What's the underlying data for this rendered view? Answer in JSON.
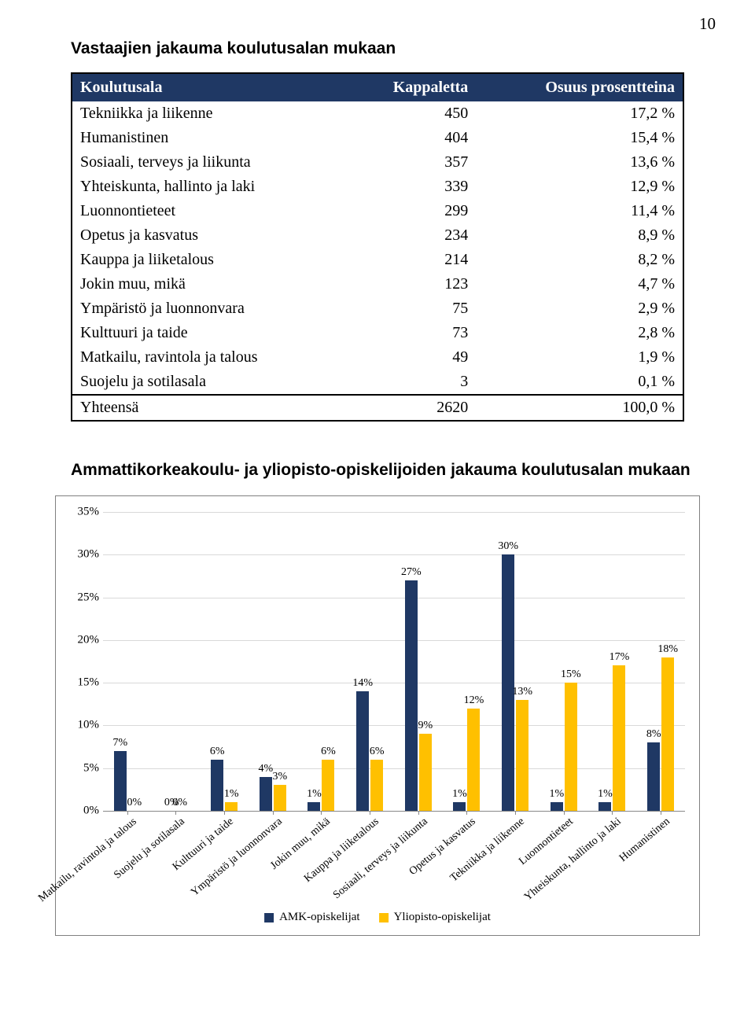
{
  "page_number": "10",
  "title1": "Vastaajien jakauma koulutusalan mukaan",
  "table": {
    "columns": [
      "Koulutusala",
      "Kappaletta",
      "Osuus prosentteina"
    ],
    "rows": [
      [
        "Tekniikka ja liikenne",
        "450",
        "17,2 %"
      ],
      [
        "Humanistinen",
        "404",
        "15,4 %"
      ],
      [
        "Sosiaali, terveys ja liikunta",
        "357",
        "13,6 %"
      ],
      [
        "Yhteiskunta, hallinto ja laki",
        "339",
        "12,9 %"
      ],
      [
        "Luonnontieteet",
        "299",
        "11,4 %"
      ],
      [
        "Opetus ja kasvatus",
        "234",
        "8,9 %"
      ],
      [
        "Kauppa ja liiketalous",
        "214",
        "8,2 %"
      ],
      [
        "Jokin muu, mikä",
        "123",
        "4,7 %"
      ],
      [
        "Ympäristö ja luonnonvara",
        "75",
        "2,9 %"
      ],
      [
        "Kulttuuri ja taide",
        "73",
        "2,8 %"
      ],
      [
        "Matkailu, ravintola ja talous",
        "49",
        "1,9 %"
      ],
      [
        "Suojelu ja sotilasala",
        "3",
        "0,1 %"
      ]
    ],
    "total": [
      "Yhteensä",
      "2620",
      "100,0 %"
    ]
  },
  "title2": "Ammattikorkeakoulu- ja yliopisto-opiskelijoiden jakauma koulutusalan mukaan",
  "chart": {
    "type": "bar",
    "ylim": [
      0,
      35
    ],
    "ytick_step": 5,
    "ytick_labels": [
      "0%",
      "5%",
      "10%",
      "15%",
      "20%",
      "25%",
      "30%",
      "35%"
    ],
    "series": [
      {
        "name": "AMK-opiskelijat",
        "color": "#1f3864"
      },
      {
        "name": "Yliopisto-opiskelijat",
        "color": "#ffc000"
      }
    ],
    "categories": [
      {
        "label": "Matkailu, ravintola ja talous",
        "a": 7,
        "b": 0,
        "a_label": "7%",
        "b_label": "0%"
      },
      {
        "label": "Suojelu ja sotilasala",
        "a": 0,
        "b": 0,
        "a_label": "0%",
        "b_label": "0%",
        "combine": true
      },
      {
        "label": "Kulttuuri ja taide",
        "a": 6,
        "b": 1,
        "a_label": "6%",
        "b_label": "1%"
      },
      {
        "label": "Ympäristö ja luonnonvara",
        "a": 4,
        "b": 3,
        "a_label": "4%",
        "b_label": "3%"
      },
      {
        "label": "Jokin muu, mikä",
        "a": 1,
        "b": 6,
        "a_label": "1%",
        "b_label": "6%"
      },
      {
        "label": "Kauppa ja liiketalous",
        "a": 14,
        "b": 6,
        "a_label": "14%",
        "b_label": "6%"
      },
      {
        "label": "Sosiaali, terveys ja liikunta",
        "a": 27,
        "b": 9,
        "a_label": "27%",
        "b_label": "9%"
      },
      {
        "label": "Opetus ja kasvatus",
        "a": 1,
        "b": 12,
        "a_label": "1%",
        "b_label": "12%"
      },
      {
        "label": "Tekniikka ja liikenne",
        "a": 30,
        "b": 13,
        "a_label": "30%",
        "b_label": "13%"
      },
      {
        "label": "Luonnontieteet",
        "a": 1,
        "b": 15,
        "a_label": "1%",
        "b_label": "15%"
      },
      {
        "label": "Yhteiskunta, hallinto ja laki",
        "a": 1,
        "b": 17,
        "a_label": "1%",
        "b_label": "17%"
      },
      {
        "label": "Humanistinen",
        "a": 8,
        "b": 18,
        "a_label": "8%",
        "b_label": "18%"
      }
    ],
    "background_color": "#ffffff",
    "grid_color": "#d9d9d9",
    "label_fontsize": 14
  }
}
